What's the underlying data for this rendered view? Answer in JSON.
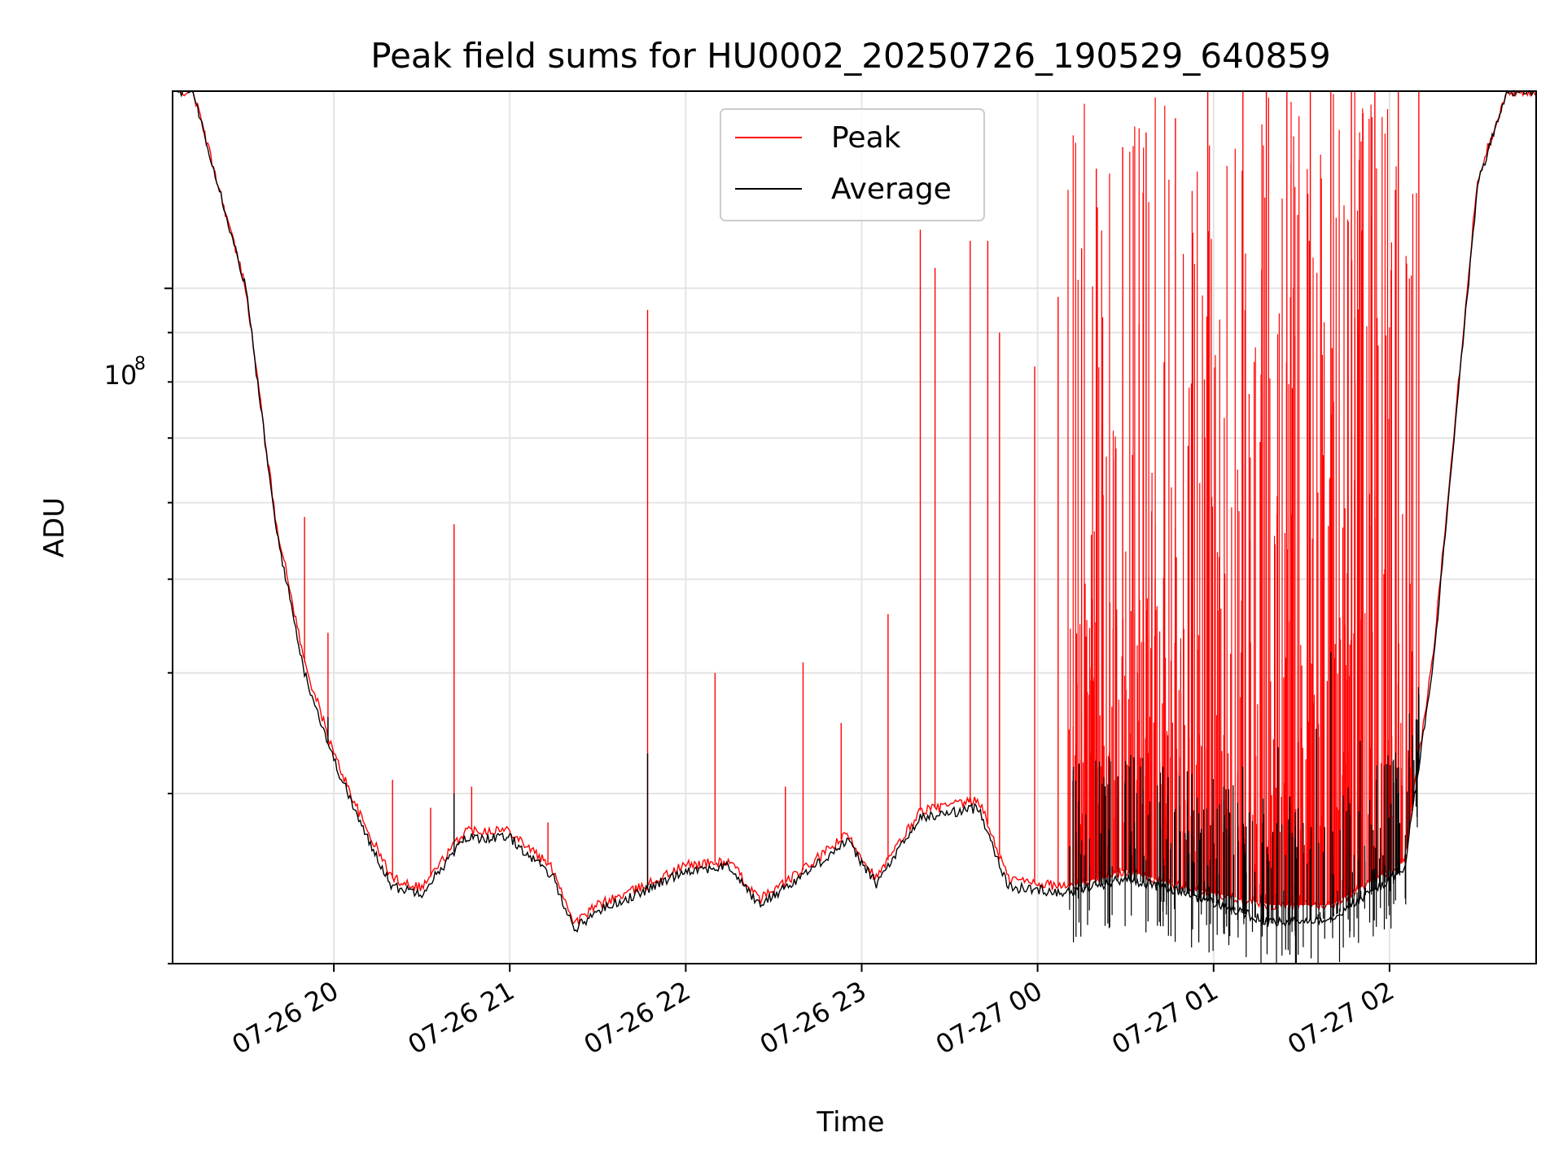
{
  "chart_data": {
    "type": "line",
    "title": "Peak field sums for HU0002_20250726_190529_640859",
    "xlabel": "Time",
    "ylabel": "ADU",
    "x_scale": "time",
    "y_scale": "log",
    "xlim": [
      "07-26 19:05",
      "07-27 02:50"
    ],
    "ylim": [
      20000000,
      160000000
    ],
    "y_tick_labels": [
      {
        "value": 100000000,
        "label": "10^8"
      }
    ],
    "x_tick_labels": [
      "07-26 20",
      "07-26 21",
      "07-26 22",
      "07-26 23",
      "07-27 00",
      "07-27 01",
      "07-27 02"
    ],
    "x_tick_times": [
      "07-26 20:00",
      "07-26 21:00",
      "07-26 22:00",
      "07-26 23:00",
      "07-27 00:00",
      "07-27 01:00",
      "07-27 02:00"
    ],
    "grid": true,
    "legend": "upper center",
    "series": [
      {
        "name": "Peak",
        "color": "#ff0000",
        "baseline": [
          [
            "07-26 19:05",
            160000000
          ],
          [
            "07-26 19:12",
            160000000
          ],
          [
            "07-26 19:20",
            130000000
          ],
          [
            "07-26 19:30",
            100000000
          ],
          [
            "07-26 19:40",
            58000000
          ],
          [
            "07-26 19:50",
            41000000
          ],
          [
            "07-26 20:00",
            33000000
          ],
          [
            "07-26 20:10",
            28000000
          ],
          [
            "07-26 20:20",
            24500000
          ],
          [
            "07-26 20:30",
            24000000
          ],
          [
            "07-26 20:45",
            27500000
          ],
          [
            "07-26 21:00",
            27500000
          ],
          [
            "07-26 21:15",
            25000000
          ],
          [
            "07-26 21:22",
            22000000
          ],
          [
            "07-26 21:30",
            23000000
          ],
          [
            "07-26 21:45",
            24000000
          ],
          [
            "07-26 22:00",
            25300000
          ],
          [
            "07-26 22:15",
            25500000
          ],
          [
            "07-26 22:25",
            23300000
          ],
          [
            "07-26 22:40",
            25000000
          ],
          [
            "07-26 22:55",
            27200000
          ],
          [
            "07-26 23:05",
            24500000
          ],
          [
            "07-26 23:20",
            28800000
          ],
          [
            "07-26 23:40",
            29500000
          ],
          [
            "07-26 23:50",
            24500000
          ],
          [
            "07-27 00:10",
            24000000
          ],
          [
            "07-27 00:30",
            25000000
          ],
          [
            "07-27 00:50",
            24000000
          ],
          [
            "07-27 01:20",
            23000000
          ],
          [
            "07-27 01:40",
            23000000
          ],
          [
            "07-27 02:05",
            25500000
          ],
          [
            "07-27 02:15",
            42000000
          ],
          [
            "07-27 02:30",
            130000000
          ],
          [
            "07-27 02:40",
            160000000
          ],
          [
            "07-27 02:50",
            160000000
          ]
        ],
        "spikes": [
          [
            "07-26 19:50",
            58000000
          ],
          [
            "07-26 19:58",
            44000000
          ],
          [
            "07-26 20:20",
            31000000
          ],
          [
            "07-26 20:33",
            29000000
          ],
          [
            "07-26 20:41",
            57000000
          ],
          [
            "07-26 20:47",
            30500000
          ],
          [
            "07-26 21:13",
            28000000
          ],
          [
            "07-26 21:47",
            95000000
          ],
          [
            "07-26 22:10",
            40000000
          ],
          [
            "07-26 22:34",
            30500000
          ],
          [
            "07-26 22:40",
            41000000
          ],
          [
            "07-26 22:53",
            35500000
          ],
          [
            "07-26 23:09",
            46000000
          ],
          [
            "07-26 23:20",
            115000000
          ],
          [
            "07-26 23:25",
            105000000
          ],
          [
            "07-26 23:37",
            112000000
          ],
          [
            "07-26 23:43",
            112000000
          ],
          [
            "07-26 23:47",
            90000000
          ],
          [
            "07-26 23:59",
            83000000
          ],
          [
            "07-27 00:07",
            98000000
          ],
          [
            "07-27 00:15",
            110000000
          ],
          [
            "07-27 00:20",
            133000000
          ],
          [
            "07-27 00:29",
            140000000
          ],
          [
            "07-27 00:37",
            145000000
          ],
          [
            "07-27 00:47",
            150000000
          ],
          [
            "07-27 00:58",
            160000000
          ],
          [
            "07-27 01:10",
            160000000
          ],
          [
            "07-27 01:18",
            160000000
          ],
          [
            "07-27 01:25",
            160000000
          ],
          [
            "07-27 01:33",
            160000000
          ],
          [
            "07-27 01:40",
            160000000
          ],
          [
            "07-27 01:47",
            160000000
          ],
          [
            "07-27 01:55",
            160000000
          ],
          [
            "07-27 02:03",
            160000000
          ],
          [
            "07-27 02:10",
            160000000
          ]
        ]
      },
      {
        "name": "Average",
        "color": "#000000",
        "baseline": [
          [
            "07-26 19:05",
            160000000
          ],
          [
            "07-26 19:12",
            160000000
          ],
          [
            "07-26 19:20",
            130000000
          ],
          [
            "07-26 19:30",
            100000000
          ],
          [
            "07-26 19:40",
            57000000
          ],
          [
            "07-26 19:50",
            40000000
          ],
          [
            "07-26 20:00",
            32500000
          ],
          [
            "07-26 20:10",
            27500000
          ],
          [
            "07-26 20:20",
            24000000
          ],
          [
            "07-26 20:30",
            23700000
          ],
          [
            "07-26 20:45",
            27000000
          ],
          [
            "07-26 21:00",
            27000000
          ],
          [
            "07-26 21:15",
            24500000
          ],
          [
            "07-26 21:22",
            21700000
          ],
          [
            "07-26 21:30",
            22700000
          ],
          [
            "07-26 21:45",
            23700000
          ],
          [
            "07-26 22:00",
            25000000
          ],
          [
            "07-26 22:15",
            25200000
          ],
          [
            "07-26 22:25",
            23000000
          ],
          [
            "07-26 22:40",
            24700000
          ],
          [
            "07-26 22:55",
            26800000
          ],
          [
            "07-26 23:05",
            24200000
          ],
          [
            "07-26 23:20",
            28300000
          ],
          [
            "07-26 23:40",
            29000000
          ],
          [
            "07-26 23:50",
            24000000
          ],
          [
            "07-27 00:10",
            23700000
          ],
          [
            "07-27 00:30",
            24500000
          ],
          [
            "07-27 00:50",
            23700000
          ],
          [
            "07-27 01:20",
            22000000
          ],
          [
            "07-27 01:40",
            22300000
          ],
          [
            "07-27 02:05",
            25000000
          ],
          [
            "07-27 02:15",
            41000000
          ],
          [
            "07-27 02:30",
            128000000
          ],
          [
            "07-27 02:40",
            160000000
          ],
          [
            "07-27 02:50",
            160000000
          ]
        ],
        "spikes": [
          [
            "07-26 19:58",
            36000000
          ],
          [
            "07-26 20:41",
            30000000
          ],
          [
            "07-26 21:47",
            33000000
          ],
          [
            "07-27 00:33",
            28000000
          ],
          [
            "07-27 01:10",
            32000000
          ],
          [
            "07-27 01:22",
            33500000
          ],
          [
            "07-27 01:35",
            35000000
          ],
          [
            "07-27 01:40",
            42000000
          ],
          [
            "07-27 01:50",
            34000000
          ],
          [
            "07-27 02:03",
            30000000
          ],
          [
            "07-27 02:10",
            38000000
          ]
        ]
      }
    ]
  }
}
